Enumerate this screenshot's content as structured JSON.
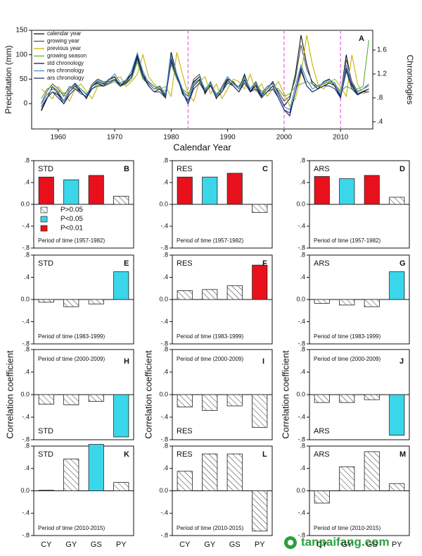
{
  "chart_data": [
    {
      "type": "line",
      "label": "A",
      "xlabel": "Calendar Year",
      "ylabel": "Precipitation (mm)",
      "y2label": "Chronologies",
      "x": [
        1957,
        1958,
        1959,
        1960,
        1961,
        1962,
        1963,
        1964,
        1965,
        1966,
        1967,
        1968,
        1969,
        1970,
        1971,
        1972,
        1973,
        1974,
        1975,
        1976,
        1977,
        1978,
        1979,
        1980,
        1981,
        1982,
        1983,
        1984,
        1985,
        1986,
        1987,
        1988,
        1989,
        1990,
        1991,
        1992,
        1993,
        1994,
        1995,
        1996,
        1997,
        1998,
        1999,
        2000,
        2001,
        2002,
        2003,
        2004,
        2005,
        2006,
        2007,
        2008,
        2009,
        2010,
        2011,
        2012,
        2013,
        2014,
        2015
      ],
      "xlim": [
        1955.3,
        2015.7
      ],
      "xticks": [
        1960,
        1970,
        1980,
        1990,
        2000,
        2010
      ],
      "ylim": [
        -52,
        150
      ],
      "yticks": [
        0,
        50,
        100,
        150
      ],
      "y2lim": [
        0.28,
        1.93
      ],
      "y2ticks": [
        {
          "value": 0.4,
          "label": ".4"
        },
        {
          "value": 0.8,
          "label": ".8"
        },
        1.2,
        1.6
      ],
      "vlines": [
        1983,
        2000,
        2010
      ],
      "vline_color": "#e86ee8",
      "series": [
        {
          "name": "calendar year",
          "color": "#111111",
          "values": [
            -15,
            10,
            35,
            20,
            5,
            30,
            40,
            25,
            10,
            35,
            45,
            40,
            50,
            55,
            35,
            45,
            60,
            100,
            55,
            40,
            30,
            35,
            15,
            105,
            60,
            20,
            5,
            45,
            55,
            20,
            40,
            10,
            30,
            50,
            45,
            30,
            60,
            25,
            40,
            15,
            30,
            45,
            20,
            -5,
            10,
            60,
            140,
            80,
            40,
            30,
            45,
            50,
            35,
            15,
            100,
            40,
            20,
            25,
            30
          ]
        },
        {
          "name": "growing year",
          "color": "#555555",
          "values": [
            0,
            25,
            40,
            30,
            15,
            35,
            30,
            20,
            15,
            40,
            50,
            45,
            45,
            50,
            40,
            40,
            55,
            95,
            60,
            45,
            35,
            30,
            20,
            90,
            55,
            25,
            15,
            50,
            60,
            25,
            45,
            15,
            35,
            55,
            40,
            35,
            55,
            30,
            45,
            20,
            35,
            40,
            25,
            5,
            15,
            50,
            120,
            70,
            45,
            35,
            40,
            45,
            40,
            20,
            90,
            45,
            25,
            30,
            40
          ]
        },
        {
          "name": "previous year",
          "color": "#c9b200",
          "values": [
            30,
            20,
            10,
            35,
            20,
            5,
            30,
            40,
            25,
            10,
            35,
            45,
            40,
            50,
            55,
            35,
            45,
            60,
            100,
            55,
            40,
            30,
            35,
            15,
            105,
            60,
            20,
            5,
            45,
            55,
            20,
            40,
            10,
            30,
            50,
            45,
            30,
            60,
            25,
            40,
            15,
            30,
            45,
            20,
            -5,
            10,
            60,
            140,
            80,
            40,
            30,
            45,
            50,
            35,
            15,
            100,
            40,
            20,
            25
          ]
        },
        {
          "name": "growing season",
          "color": "#5fae3c",
          "values": [
            10,
            30,
            35,
            25,
            20,
            30,
            35,
            30,
            20,
            30,
            40,
            35,
            40,
            45,
            35,
            40,
            50,
            85,
            50,
            40,
            30,
            30,
            25,
            80,
            50,
            30,
            20,
            40,
            50,
            30,
            40,
            20,
            30,
            45,
            40,
            30,
            50,
            30,
            40,
            25,
            30,
            35,
            30,
            15,
            20,
            35,
            40,
            45,
            40,
            35,
            40,
            45,
            40,
            25,
            35,
            30,
            30,
            35,
            130
          ]
        },
        {
          "name": "std chronology",
          "color": "#1b1b3a",
          "axis": "y2",
          "values": [
            0.6,
            0.8,
            0.9,
            0.85,
            0.7,
            0.9,
            1.0,
            0.9,
            0.8,
            1.0,
            1.05,
            1.0,
            1.1,
            1.15,
            1.0,
            1.1,
            1.2,
            1.5,
            1.2,
            1.0,
            0.9,
            0.95,
            0.8,
            1.45,
            1.2,
            0.9,
            0.7,
            1.0,
            1.1,
            0.9,
            1.0,
            0.8,
            0.9,
            1.1,
            1.0,
            0.9,
            1.1,
            0.9,
            1.0,
            0.8,
            0.9,
            1.0,
            0.8,
            0.6,
            0.5,
            0.9,
            1.3,
            1.0,
            0.9,
            0.95,
            1.0,
            1.05,
            1.0,
            0.8,
            1.3,
            1.0,
            0.85,
            0.9,
            0.95
          ]
        },
        {
          "name": "res chronology",
          "color": "#3b8ed6",
          "axis": "y2",
          "values": [
            0.7,
            0.85,
            0.95,
            0.9,
            0.75,
            0.95,
            1.05,
            0.95,
            0.85,
            1.0,
            1.1,
            1.05,
            1.1,
            1.2,
            1.05,
            1.1,
            1.25,
            1.55,
            1.25,
            1.05,
            0.95,
            1.0,
            0.85,
            1.5,
            1.2,
            0.95,
            0.75,
            1.05,
            1.15,
            0.95,
            1.05,
            0.85,
            0.95,
            1.15,
            1.05,
            0.95,
            1.15,
            0.95,
            1.05,
            0.85,
            0.95,
            1.05,
            0.85,
            0.65,
            0.6,
            1.0,
            1.35,
            1.1,
            0.95,
            1.0,
            1.05,
            1.1,
            1.05,
            0.85,
            1.35,
            1.05,
            0.9,
            0.95,
            1.0
          ]
        },
        {
          "name": "ars chronology",
          "color": "#24357a",
          "axis": "y2",
          "values": [
            0.65,
            0.8,
            0.9,
            0.8,
            0.7,
            0.85,
            0.95,
            0.9,
            0.8,
            0.95,
            1.0,
            1.0,
            1.05,
            1.1,
            1.0,
            1.05,
            1.15,
            1.45,
            1.15,
            1.0,
            0.9,
            0.9,
            0.8,
            1.4,
            1.15,
            0.9,
            0.7,
            0.95,
            1.05,
            0.9,
            1.0,
            0.8,
            0.9,
            1.05,
            1.0,
            0.9,
            1.05,
            0.9,
            0.95,
            0.8,
            0.9,
            0.95,
            0.8,
            0.6,
            0.55,
            0.9,
            1.25,
            1.0,
            0.9,
            0.95,
            1.0,
            1.0,
            0.95,
            0.8,
            1.25,
            0.95,
            0.85,
            0.9,
            0.9
          ]
        }
      ]
    },
    {
      "type": "bar",
      "label": "STD",
      "panel": "B",
      "period": "Period of time (1957-1982)",
      "values": [
        0.5,
        0.45,
        0.53,
        0.15
      ],
      "colors": [
        "#e8111b",
        "#3ad7ea",
        "#e8111b",
        "#ffffff"
      ],
      "ylim": [
        -0.8,
        0.8
      ],
      "yticks": [
        {
          "value": -0.8,
          "label": "-.8"
        },
        {
          "value": -0.4,
          "label": "-.4"
        },
        {
          "value": 0,
          "label": "0.0"
        },
        {
          "value": 0.4,
          "label": ".4"
        },
        {
          "value": 0.8,
          "label": ".8"
        }
      ],
      "legend": [
        {
          "name": "P>0.05",
          "color": "#ffffff"
        },
        {
          "name": "P<0.05",
          "color": "#3ad7ea"
        },
        {
          "name": "P<0.01",
          "color": "#e8111b"
        }
      ]
    },
    {
      "type": "bar",
      "label": "RES",
      "panel": "C",
      "period": "Period of time (1957-1982)",
      "values": [
        0.5,
        0.5,
        0.57,
        -0.15
      ],
      "colors": [
        "#e8111b",
        "#3ad7ea",
        "#e8111b",
        "#ffffff"
      ],
      "ylim": [
        -0.8,
        0.8
      ],
      "yticks": [
        {
          "value": -0.8,
          "label": "-.8"
        },
        {
          "value": -0.4,
          "label": "-.4"
        },
        {
          "value": 0,
          "label": "0.0"
        },
        {
          "value": 0.4,
          "label": ".4"
        },
        {
          "value": 0.8,
          "label": ".8"
        }
      ]
    },
    {
      "type": "bar",
      "label": "ARS",
      "panel": "D",
      "period": "Period of time (1957-1982)",
      "values": [
        0.51,
        0.47,
        0.53,
        0.13
      ],
      "colors": [
        "#e8111b",
        "#3ad7ea",
        "#e8111b",
        "#ffffff"
      ],
      "ylim": [
        -0.8,
        0.8
      ],
      "yticks": [
        {
          "value": -0.8,
          "label": "-.8"
        },
        {
          "value": -0.4,
          "label": "-.4"
        },
        {
          "value": 0,
          "label": "0.0"
        },
        {
          "value": 0.4,
          "label": ".4"
        },
        {
          "value": 0.8,
          "label": ".8"
        }
      ]
    },
    {
      "type": "bar",
      "label": "STD",
      "panel": "E",
      "period": "Period of time (1983-1999)",
      "values": [
        -0.05,
        -0.13,
        -0.08,
        0.5
      ],
      "colors": [
        "#ffffff",
        "#ffffff",
        "#ffffff",
        "#3ad7ea"
      ],
      "ylim": [
        -0.8,
        0.8
      ],
      "yticks": [
        {
          "value": -0.8,
          "label": "-.8"
        },
        {
          "value": -0.4,
          "label": "-.4"
        },
        {
          "value": 0,
          "label": "0.0"
        },
        {
          "value": 0.4,
          "label": ".4"
        },
        {
          "value": 0.8,
          "label": ".8"
        }
      ]
    },
    {
      "type": "bar",
      "label": "RES",
      "panel": "F",
      "period": "Period of time (1983-1999)",
      "values": [
        0.16,
        0.18,
        0.25,
        0.62
      ],
      "colors": [
        "#ffffff",
        "#ffffff",
        "#ffffff",
        "#e8111b"
      ],
      "ylim": [
        -0.8,
        0.8
      ],
      "yticks": [
        {
          "value": -0.8,
          "label": "-.8"
        },
        {
          "value": -0.4,
          "label": "-.4"
        },
        {
          "value": 0,
          "label": "0.0"
        },
        {
          "value": 0.4,
          "label": ".4"
        },
        {
          "value": 0.8,
          "label": ".8"
        }
      ]
    },
    {
      "type": "bar",
      "label": "ARS",
      "panel": "G",
      "period": "Period of time (1983-1999)",
      "values": [
        -0.07,
        -0.1,
        -0.13,
        0.5
      ],
      "colors": [
        "#ffffff",
        "#ffffff",
        "#ffffff",
        "#3ad7ea"
      ],
      "ylim": [
        -0.8,
        0.8
      ],
      "yticks": [
        {
          "value": -0.8,
          "label": "-.8"
        },
        {
          "value": -0.4,
          "label": "-.4"
        },
        {
          "value": 0,
          "label": "0.0"
        },
        {
          "value": 0.4,
          "label": ".4"
        },
        {
          "value": 0.8,
          "label": ".8"
        }
      ]
    },
    {
      "type": "bar",
      "label": "STD",
      "panel": "H",
      "period": "Period of time (2000-2009)",
      "ylabel": "Correlation coefficient",
      "values": [
        -0.17,
        -0.18,
        -0.12,
        -0.75
      ],
      "colors": [
        "#ffffff",
        "#ffffff",
        "#ffffff",
        "#3ad7ea"
      ],
      "ylim": [
        -0.8,
        0.8
      ],
      "yticks": [
        {
          "value": -0.8,
          "label": "-.8"
        },
        {
          "value": -0.4,
          "label": "-.4"
        },
        {
          "value": 0,
          "label": "0.0"
        },
        {
          "value": 0.4,
          "label": ".4"
        },
        {
          "value": 0.8,
          "label": ".8"
        }
      ]
    },
    {
      "type": "bar",
      "label": "RES",
      "panel": "I",
      "period": "Period of time (2000-2009)",
      "ylabel": "Correlation coefficient",
      "values": [
        -0.22,
        -0.28,
        -0.2,
        -0.58
      ],
      "colors": [
        "#ffffff",
        "#ffffff",
        "#ffffff",
        "#ffffff"
      ],
      "ylim": [
        -0.8,
        0.8
      ],
      "yticks": [
        {
          "value": -0.8,
          "label": "-.8"
        },
        {
          "value": -0.4,
          "label": "-.4"
        },
        {
          "value": 0,
          "label": "0.0"
        },
        {
          "value": 0.4,
          "label": ".4"
        },
        {
          "value": 0.8,
          "label": ".8"
        }
      ]
    },
    {
      "type": "bar",
      "label": "ARS",
      "panel": "J",
      "period": "Period of time (2000-2009)",
      "ylabel": "Correlation coefficient",
      "values": [
        -0.14,
        -0.14,
        -0.09,
        -0.72
      ],
      "colors": [
        "#ffffff",
        "#ffffff",
        "#ffffff",
        "#3ad7ea"
      ],
      "ylim": [
        -0.8,
        0.8
      ],
      "yticks": [
        {
          "value": -0.8,
          "label": "-.8"
        },
        {
          "value": -0.4,
          "label": "-.4"
        },
        {
          "value": 0,
          "label": "0.0"
        },
        {
          "value": 0.4,
          "label": ".4"
        },
        {
          "value": 0.8,
          "label": ".8"
        }
      ]
    },
    {
      "type": "bar",
      "label": "STD",
      "panel": "K",
      "period": "Period of time (2010-2015)",
      "categories": [
        "CY",
        "GY",
        "GS",
        "PY"
      ],
      "values": [
        0.01,
        0.57,
        0.83,
        0.15
      ],
      "colors": [
        "#ffffff",
        "#ffffff",
        "#3ad7ea",
        "#ffffff"
      ],
      "ylim": [
        -0.8,
        0.8
      ],
      "yticks": [
        {
          "value": -0.8,
          "label": "-.8"
        },
        {
          "value": -0.4,
          "label": "-.4"
        },
        {
          "value": 0,
          "label": "0.0"
        },
        {
          "value": 0.4,
          "label": ".4"
        },
        {
          "value": 0.8,
          "label": ".8"
        }
      ]
    },
    {
      "type": "bar",
      "label": "RES",
      "panel": "L",
      "period": "Period of time (2010-2015)",
      "categories": [
        "CY",
        "GY",
        "GS",
        "PY"
      ],
      "values": [
        0.35,
        0.66,
        0.66,
        -0.72
      ],
      "colors": [
        "#ffffff",
        "#ffffff",
        "#ffffff",
        "#ffffff"
      ],
      "ylim": [
        -0.8,
        0.8
      ],
      "yticks": [
        {
          "value": -0.8,
          "label": "-.8"
        },
        {
          "value": -0.4,
          "label": "-.4"
        },
        {
          "value": 0,
          "label": "0.0"
        },
        {
          "value": 0.4,
          "label": ".4"
        },
        {
          "value": 0.8,
          "label": ".8"
        }
      ]
    },
    {
      "type": "bar",
      "label": "ARS",
      "panel": "M",
      "period": "Period of time (2010-2015)",
      "categories": [
        "CY",
        "GY",
        "GS",
        "PY"
      ],
      "values": [
        -0.22,
        0.43,
        0.7,
        0.13
      ],
      "colors": [
        "#ffffff",
        "#ffffff",
        "#ffffff",
        "#ffffff"
      ],
      "ylim": [
        -0.8,
        0.8
      ],
      "yticks": [
        {
          "value": -0.8,
          "label": "-.8"
        },
        {
          "value": -0.4,
          "label": "-.4"
        },
        {
          "value": 0,
          "label": "0.0"
        },
        {
          "value": 0.4,
          "label": ".4"
        },
        {
          "value": 0.8,
          "label": ".8"
        }
      ]
    }
  ],
  "watermark": "tanpaifang.com"
}
